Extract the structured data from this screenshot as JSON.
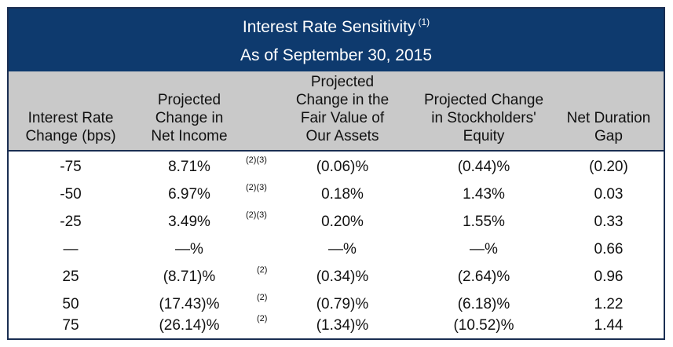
{
  "title": {
    "line1": "Interest Rate Sensitivity",
    "line1_footnote": "(1)",
    "line2": "As of September 30, 2015"
  },
  "headers": {
    "rate_change": [
      "Interest Rate",
      "Change (bps)"
    ],
    "net_income": [
      "Projected",
      "Change in",
      "Net Income"
    ],
    "fair_value": [
      "Projected",
      "Change in the",
      "Fair Value of",
      "Our Assets"
    ],
    "equity": [
      "Projected Change",
      "in Stockholders'",
      "Equity"
    ],
    "duration": [
      "Net Duration",
      "Gap"
    ]
  },
  "rows": [
    {
      "rate": "-75",
      "net_income": "8.71%",
      "footnote": "(2)(3)",
      "fair_value": "(0.06)%",
      "equity": "(0.44)%",
      "duration": "(0.20)"
    },
    {
      "rate": "-50",
      "net_income": "6.97%",
      "footnote": "(2)(3)",
      "fair_value": "0.18%",
      "equity": "1.43%",
      "duration": "0.03"
    },
    {
      "rate": "-25",
      "net_income": "3.49%",
      "footnote": "(2)(3)",
      "fair_value": "0.20%",
      "equity": "1.55%",
      "duration": "0.33"
    },
    {
      "rate": "—",
      "net_income": "—%",
      "footnote": "",
      "fair_value": "—%",
      "equity": "—%",
      "duration": "0.66"
    },
    {
      "rate": "25",
      "net_income": "(8.71)%",
      "footnote": "(2)",
      "fair_value": "(0.34)%",
      "equity": "(2.64)%",
      "duration": "0.96"
    },
    {
      "rate": "50",
      "net_income": "(17.43)%",
      "footnote": "(2)",
      "fair_value": "(0.79)%",
      "equity": "(6.18)%",
      "duration": "1.22"
    },
    {
      "rate": "75",
      "net_income": "(26.14)%",
      "footnote": "(2)",
      "fair_value": "(1.34)%",
      "equity": "(10.52)%",
      "duration": "1.44"
    }
  ],
  "colors": {
    "title_background": "#0e3a6e",
    "header_background": "#c9c9c9",
    "border": "#1a2e52"
  }
}
